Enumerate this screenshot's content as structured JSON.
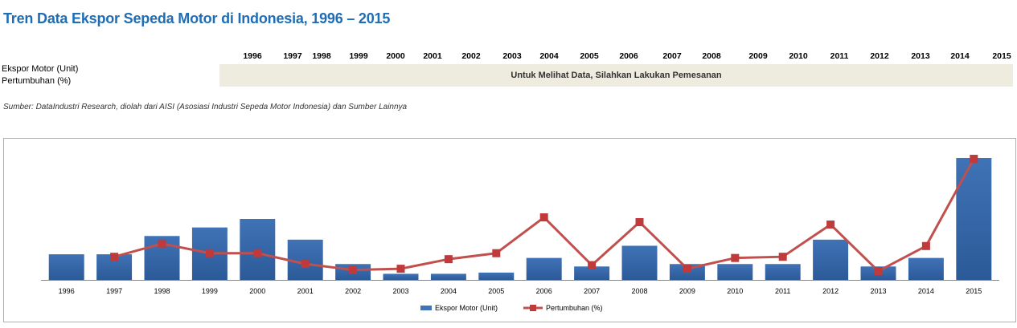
{
  "title": "Tren Data Ekspor Sepeda Motor di Indonesia, 1996 – 2015",
  "table": {
    "years": [
      "1996",
      "1997",
      "1998",
      "1999",
      "2000",
      "2001",
      "2002",
      "2003",
      "2004",
      "2005",
      "2006",
      "2007",
      "2008",
      "2009",
      "2010",
      "2011",
      "2012",
      "2013",
      "2014",
      "2015"
    ],
    "rows": [
      "Ekspor Motor (Unit)",
      "Pertumbuhan (%)"
    ],
    "notice": "Untuk Melihat Data, Silahkan Lakukan Pemesanan"
  },
  "source": "Sumber: DataIndustri Research, diolah dari AISI (Asosiasi Industri Sepeda Motor Indonesia) dan Sumber Lainnya",
  "colors": {
    "bar": "#3f72b6",
    "bar_dark": "#2c5a98",
    "line": "#c0504d",
    "marker": "#c0393b",
    "title": "#1f6db4"
  },
  "chart_data": {
    "type": "bar",
    "title": "",
    "categories": [
      "1996",
      "1997",
      "1998",
      "1999",
      "2000",
      "2001",
      "2002",
      "2003",
      "2004",
      "2005",
      "2006",
      "2007",
      "2008",
      "2009",
      "2010",
      "2011",
      "2012",
      "2013",
      "2014",
      "2015"
    ],
    "series": [
      {
        "name": "Ekspor Motor (Unit)",
        "type": "bar",
        "values": [
          21,
          21,
          36,
          43,
          50,
          33,
          13,
          5,
          5,
          6,
          18,
          11,
          28,
          13,
          13,
          13,
          33,
          11,
          18,
          100
        ]
      },
      {
        "name": "Pertumbuhan (%)",
        "type": "line",
        "values": [
          null,
          18,
          29,
          21,
          21,
          12,
          7,
          8,
          16,
          21,
          51,
          11,
          47,
          8,
          17,
          18,
          45,
          6,
          27,
          100
        ]
      }
    ],
    "ylim": [
      0,
      100
    ],
    "xlabel": "",
    "ylabel": "",
    "grid": false,
    "legend": "bottom-center"
  }
}
